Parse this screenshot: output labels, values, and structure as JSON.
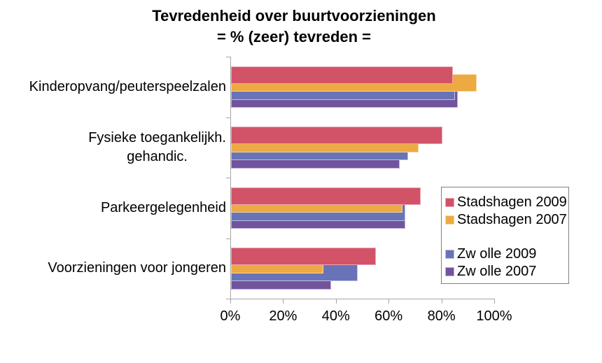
{
  "chart_data": {
    "type": "bar",
    "orientation": "horizontal",
    "title": "Tevredenheid over buurtvoorzieningen",
    "subtitle": "= % (zeer) tevreden =",
    "categories": [
      {
        "lines": [
          "Kinderopvang/peuterspeelzalen"
        ]
      },
      {
        "lines": [
          "Fysieke toegankelijkh.",
          "gehandic."
        ]
      },
      {
        "lines": [
          "Parkeergelegenheid"
        ]
      },
      {
        "lines": [
          "Voorzieningen voor jongeren"
        ]
      }
    ],
    "series": [
      {
        "name": "Stadshagen 2009",
        "color": "#D25368",
        "border_color": "#E8A8B2",
        "values": [
          84,
          80,
          72,
          55
        ]
      },
      {
        "name": "Stadshagen 2007",
        "color": "#EDAA42",
        "border_color": "#F6D7A0",
        "values": [
          93,
          71,
          65,
          35
        ]
      },
      {
        "name": "Zw olle 2009",
        "color": "#6873B8",
        "border_color": "#BCC2E2",
        "values": [
          85,
          67,
          66,
          48
        ]
      },
      {
        "name": "Zw olle 2007",
        "color": "#72549E",
        "border_color": "#C0AED6",
        "values": [
          86,
          64,
          66,
          38
        ]
      }
    ],
    "xlim": [
      0,
      100
    ],
    "x_tick_labels": [
      "0%",
      "20%",
      "40%",
      "60%",
      "80%",
      "100%"
    ],
    "grid": false,
    "legend": {
      "position": "right-middle",
      "gap_after_index": 1,
      "border_color": "#808080",
      "background": "#FFFFFF"
    },
    "axis_color": "#A6A6A6",
    "text_color": "#000000"
  }
}
